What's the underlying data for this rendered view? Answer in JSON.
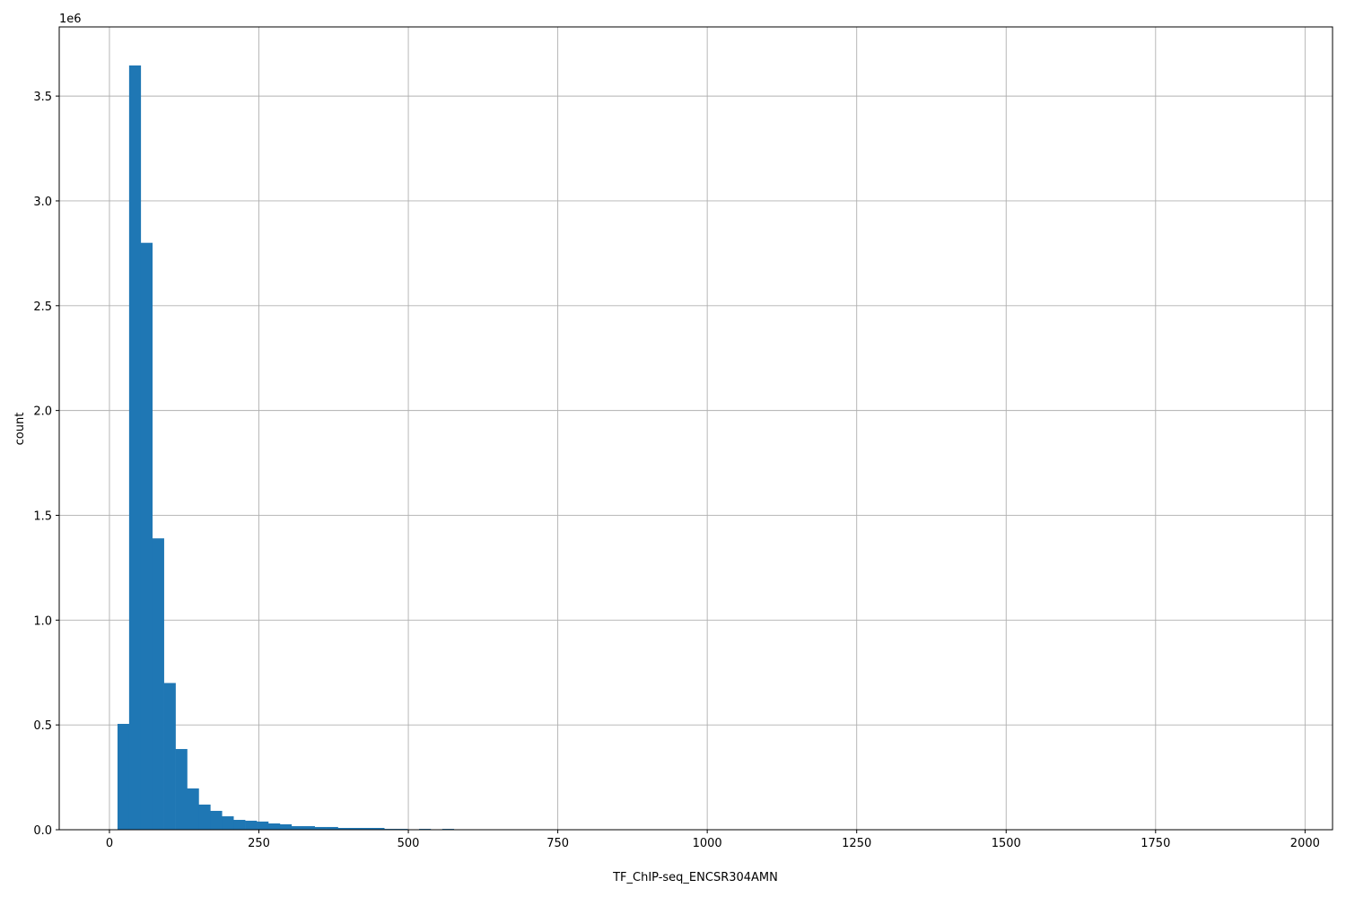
{
  "chart_data": {
    "type": "bar",
    "subtype": "histogram",
    "title": "",
    "xlabel": "TF_ChIP-seq_ENCSR304AMN",
    "ylabel": "count",
    "y_offset_label": "1e6",
    "xlim": [
      -84,
      2046
    ],
    "ylim": [
      0,
      3830000
    ],
    "grid": true,
    "bar_color": "#1f77b4",
    "grid_color": "#b0b0b0",
    "x_ticks": [
      0,
      250,
      500,
      750,
      1000,
      1250,
      1500,
      1750,
      2000
    ],
    "x_tick_labels": [
      "0",
      "250",
      "500",
      "750",
      "1000",
      "1250",
      "1500",
      "1750",
      "2000"
    ],
    "y_ticks": [
      0,
      500000,
      1000000,
      1500000,
      2000000,
      2500000,
      3000000,
      3500000
    ],
    "y_tick_labels": [
      "0.0",
      "0.5",
      "1.0",
      "1.5",
      "2.0",
      "2.5",
      "3.0",
      "3.5"
    ],
    "bin_start": 13.5,
    "bin_width": 19.4,
    "counts": [
      505000,
      3646000,
      2800000,
      1390000,
      700000,
      385000,
      197000,
      120000,
      90000,
      64000,
      47000,
      43000,
      39000,
      30000,
      26000,
      17000,
      17000,
      13000,
      13000,
      8600,
      8600,
      8600,
      8600,
      4000,
      4000,
      1000,
      4000,
      0,
      4000
    ]
  }
}
